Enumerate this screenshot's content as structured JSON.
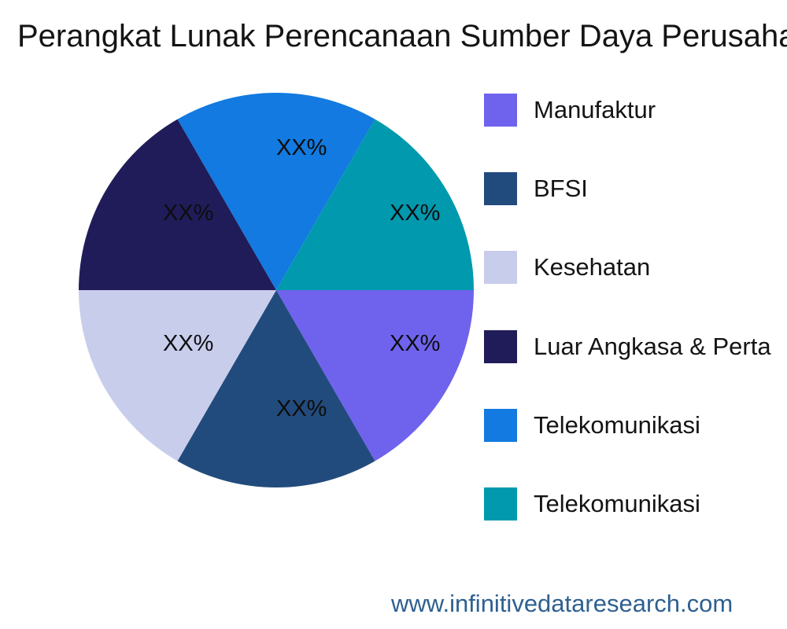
{
  "title": {
    "text": "Perangkat Lunak Perencanaan Sumber Daya Perusahaa"
  },
  "footer": {
    "text": "www.infinitivedataresearch.com",
    "color": "#2E6090"
  },
  "chart_data": {
    "type": "pie",
    "title": "Perangkat Lunak Perencanaan Sumber Daya Perusahaa",
    "labels": [
      "Manufaktur",
      "BFSI",
      "Kesehatan",
      "Luar Angkasa & Perta",
      "Telekomunikasi",
      "Telekomunikasi"
    ],
    "values": [
      16.67,
      16.67,
      16.67,
      16.67,
      16.66,
      16.66
    ],
    "value_labels": [
      "XX%",
      "XX%",
      "XX%",
      "XX%",
      "XX%",
      "XX%"
    ],
    "colors": [
      "#6F63EE",
      "#224B7D",
      "#C9CDEC",
      "#201C59",
      "#127AE0",
      "#0199AE"
    ],
    "start_angle_deg": 0,
    "direction": "clockwise",
    "slice_angle_deg": 60,
    "legend_position": "right",
    "grid": false
  },
  "legend": {
    "items": [
      {
        "label": "Manufaktur",
        "color": "#6F63EE"
      },
      {
        "label": "BFSI",
        "color": "#224B7D"
      },
      {
        "label": "Kesehatan",
        "color": "#C9CDEC"
      },
      {
        "label": "Luar Angkasa & Perta",
        "color": "#201C59"
      },
      {
        "label": "Telekomunikasi",
        "color": "#127AE0"
      },
      {
        "label": "Telekomunikasi",
        "color": "#0199AE"
      }
    ]
  }
}
